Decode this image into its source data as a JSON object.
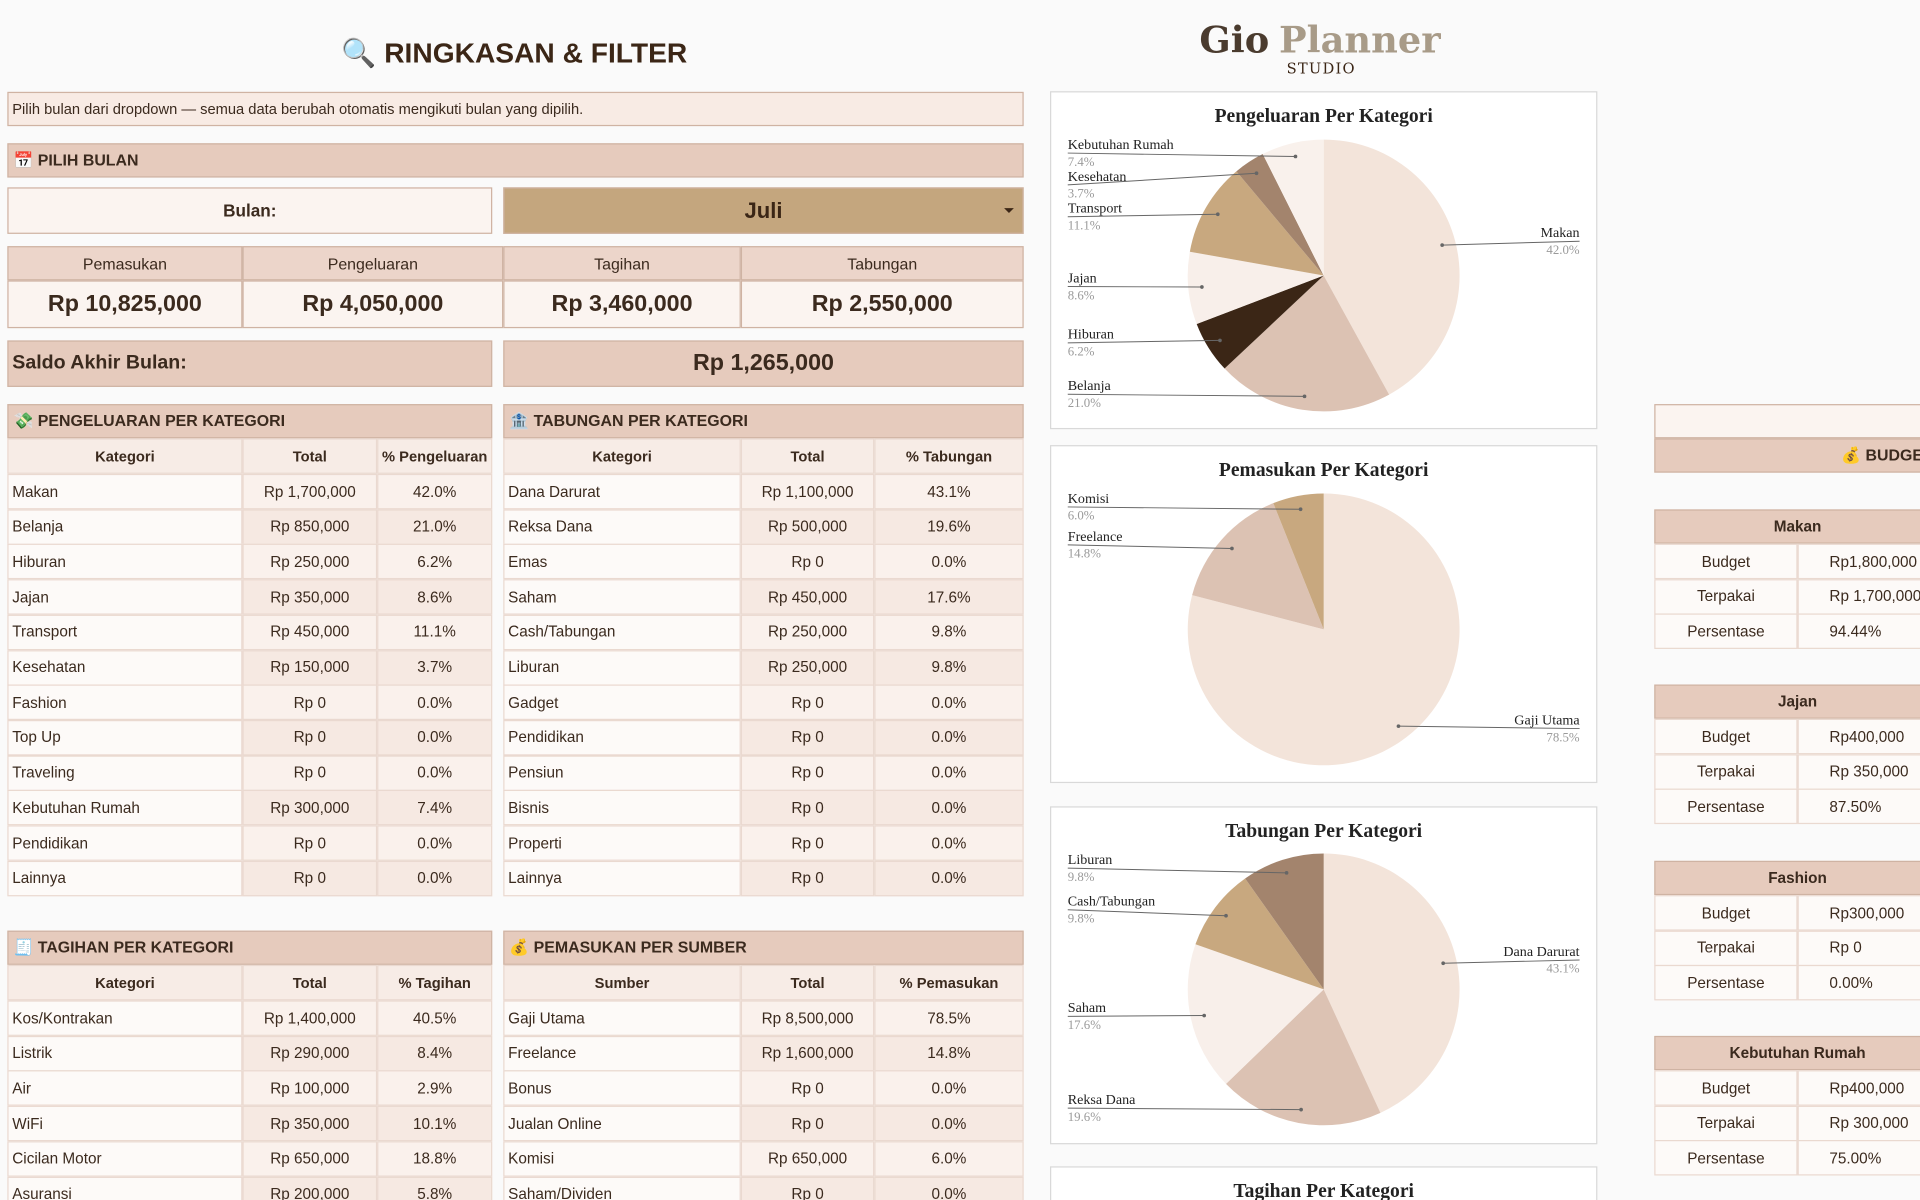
{
  "header": {
    "title": "🔍 RINGKASAN & FILTER"
  },
  "logo": {
    "name_1": "Gio",
    "name_2": "Planner",
    "subtitle": "STUDIO"
  },
  "note": "Pilih bulan dari dropdown — semua data berubah otomatis mengikuti bulan yang dipilih.",
  "month_picker": {
    "title": "📅 PILIH BULAN",
    "label": "Bulan:",
    "value": "Juli"
  },
  "summary": {
    "headers": [
      "Pemasukan",
      "Pengeluaran",
      "Tagihan",
      "Tabungan"
    ],
    "values": [
      "Rp 10,825,000",
      "Rp 4,050,000",
      "Rp 3,460,000",
      "Rp 2,550,000"
    ]
  },
  "balance": {
    "label": "Saldo Akhir Bulan:",
    "value": "Rp 1,265,000"
  },
  "tables": [
    {
      "title": "💸 PENGELUARAN PER KATEGORI",
      "columns": [
        "Kategori",
        "Total",
        "% Pengeluaran"
      ],
      "rows": [
        [
          "Makan",
          "Rp 1,700,000",
          "42.0%"
        ],
        [
          "Belanja",
          "Rp 850,000",
          "21.0%"
        ],
        [
          "Hiburan",
          "Rp 250,000",
          "6.2%"
        ],
        [
          "Jajan",
          "Rp 350,000",
          "8.6%"
        ],
        [
          "Transport",
          "Rp 450,000",
          "11.1%"
        ],
        [
          "Kesehatan",
          "Rp 150,000",
          "3.7%"
        ],
        [
          "Fashion",
          "Rp 0",
          "0.0%"
        ],
        [
          "Top Up",
          "Rp 0",
          "0.0%"
        ],
        [
          "Traveling",
          "Rp 0",
          "0.0%"
        ],
        [
          "Kebutuhan Rumah",
          "Rp 300,000",
          "7.4%"
        ],
        [
          "Pendidikan",
          "Rp 0",
          "0.0%"
        ],
        [
          "Lainnya",
          "Rp 0",
          "0.0%"
        ]
      ]
    },
    {
      "title": "🏦 TABUNGAN PER KATEGORI",
      "columns": [
        "Kategori",
        "Total",
        "% Tabungan"
      ],
      "rows": [
        [
          "Dana Darurat",
          "Rp 1,100,000",
          "43.1%"
        ],
        [
          "Reksa Dana",
          "Rp 500,000",
          "19.6%"
        ],
        [
          "Emas",
          "Rp 0",
          "0.0%"
        ],
        [
          "Saham",
          "Rp 450,000",
          "17.6%"
        ],
        [
          "Cash/Tabungan",
          "Rp 250,000",
          "9.8%"
        ],
        [
          "Liburan",
          "Rp 250,000",
          "9.8%"
        ],
        [
          "Gadget",
          "Rp 0",
          "0.0%"
        ],
        [
          "Pendidikan",
          "Rp 0",
          "0.0%"
        ],
        [
          "Pensiun",
          "Rp 0",
          "0.0%"
        ],
        [
          "Bisnis",
          "Rp 0",
          "0.0%"
        ],
        [
          "Properti",
          "Rp 0",
          "0.0%"
        ],
        [
          "Lainnya",
          "Rp 0",
          "0.0%"
        ]
      ]
    },
    {
      "title": "🧾 TAGIHAN PER KATEGORI",
      "columns": [
        "Kategori",
        "Total",
        "% Tagihan"
      ],
      "rows": [
        [
          "Kos/Kontrakan",
          "Rp 1,400,000",
          "40.5%"
        ],
        [
          "Listrik",
          "Rp 290,000",
          "8.4%"
        ],
        [
          "Air",
          "Rp 100,000",
          "2.9%"
        ],
        [
          "WiFi",
          "Rp 350,000",
          "10.1%"
        ],
        [
          "Cicilan Motor",
          "Rp 650,000",
          "18.8%"
        ],
        [
          "Asuransi",
          "Rp 200,000",
          "5.8%"
        ]
      ]
    },
    {
      "title": "💰 PEMASUKAN PER SUMBER",
      "columns": [
        "Sumber",
        "Total",
        "% Pemasukan"
      ],
      "rows": [
        [
          "Gaji Utama",
          "Rp 8,500,000",
          "78.5%"
        ],
        [
          "Freelance",
          "Rp 1,600,000",
          "14.8%"
        ],
        [
          "Bonus",
          "Rp 0",
          "0.0%"
        ],
        [
          "Jualan Online",
          "Rp 0",
          "0.0%"
        ],
        [
          "Komisi",
          "Rp 650,000",
          "6.0%"
        ],
        [
          "Saham/Dividen",
          "Rp 0",
          "0.0%"
        ]
      ]
    }
  ],
  "charts": [
    {
      "type": "pie",
      "title": "Pengeluaran Per Kategori",
      "categories": [
        "Makan",
        "Belanja",
        "Hiburan",
        "Jajan",
        "Transport",
        "Kesehatan",
        "Kebutuhan Rumah"
      ],
      "values": [
        42.0,
        21.0,
        6.2,
        8.6,
        11.1,
        3.7,
        7.4
      ],
      "value_labels": [
        "42.0%",
        "21.0%",
        "6.2%",
        "8.6%",
        "11.1%",
        "3.7%",
        "7.4%"
      ],
      "colors": [
        "#f3e4da",
        "#dcc2b3",
        "#3b2616",
        "#f8efea",
        "#c8a87f",
        "#a3846d",
        "#f9f1ec"
      ]
    },
    {
      "type": "pie",
      "title": "Pemasukan Per Kategori",
      "categories": [
        "Gaji Utama",
        "Freelance",
        "Komisi"
      ],
      "values": [
        78.5,
        14.8,
        6.0
      ],
      "value_labels": [
        "78.5%",
        "14.8%",
        "6.0%"
      ],
      "colors": [
        "#f3e4da",
        "#dcc2b3",
        "#c8a87f"
      ]
    },
    {
      "type": "pie",
      "title": "Tabungan Per Kategori",
      "categories": [
        "Dana Darurat",
        "Reksa Dana",
        "Saham",
        "Cash/Tabungan",
        "Liburan"
      ],
      "values": [
        43.1,
        19.6,
        17.6,
        9.8,
        9.8
      ],
      "value_labels": [
        "43.1%",
        "19.6%",
        "17.6%",
        "9.8%",
        "9.8%"
      ],
      "colors": [
        "#f3e4da",
        "#dcc2b3",
        "#f8efea",
        "#c8a87f",
        "#a3846d"
      ]
    },
    {
      "type": "pie",
      "title": "Tagihan Per Kategori"
    }
  ],
  "budgets": {
    "title": "💰 BUDGET",
    "blocks": [
      {
        "category": "Makan",
        "rows": [
          [
            "Budget",
            "Rp1,800,000"
          ],
          [
            "Terpakai",
            "Rp 1,700,000"
          ],
          [
            "Persentase",
            "94.44%"
          ]
        ]
      },
      {
        "category": "Jajan",
        "rows": [
          [
            "Budget",
            "Rp400,000"
          ],
          [
            "Terpakai",
            "Rp 350,000"
          ],
          [
            "Persentase",
            "87.50%"
          ]
        ]
      },
      {
        "category": "Fashion",
        "rows": [
          [
            "Budget",
            "Rp300,000"
          ],
          [
            "Terpakai",
            "Rp 0"
          ],
          [
            "Persentase",
            "0.00%"
          ]
        ]
      },
      {
        "category": "Kebutuhan Rumah",
        "rows": [
          [
            "Budget",
            "Rp400,000"
          ],
          [
            "Terpakai",
            "Rp 300,000"
          ],
          [
            "Persentase",
            "75.00%"
          ]
        ]
      }
    ]
  }
}
